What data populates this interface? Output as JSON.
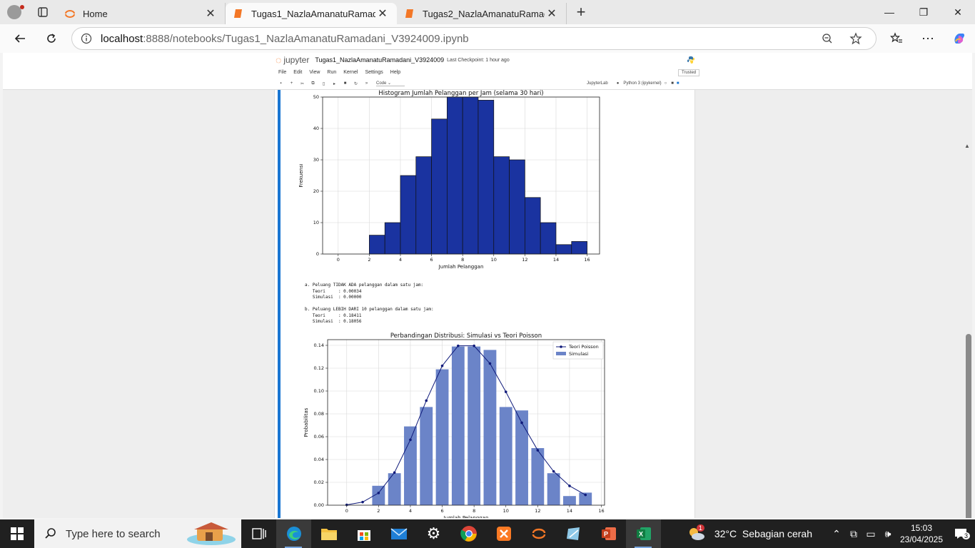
{
  "browser": {
    "tabs": [
      {
        "title": "Home",
        "state": "inactive"
      },
      {
        "title": "Tugas1_NazlaAmanatuRamadani_",
        "state": "active"
      },
      {
        "title": "Tugas2_NazlaAmanatuRamadani_",
        "state": "inactive"
      }
    ],
    "url_host": "localhost",
    "url_path": ":8888/notebooks/Tugas1_NazlaAmanatuRamadani_V3924009.ipynb",
    "icons": [
      "back-icon",
      "reload-icon",
      "info-icon",
      "zoom-icon",
      "favorite-star-icon",
      "favorites-icon",
      "more-icon",
      "copilot-icon"
    ]
  },
  "jupyter": {
    "logo_text": "jupyter",
    "notebook_name": "Tugas1_NazlaAmanatuRamadani_V3924009",
    "checkpoint": "Last Checkpoint: 1 hour ago",
    "menu": [
      "File",
      "Edit",
      "View",
      "Run",
      "Kernel",
      "Settings",
      "Help"
    ],
    "trusted": "Trusted",
    "cell_type": "Code",
    "jupyterlab_link": "JupyterLab",
    "kernel": "Python 3 (ipykernel)"
  },
  "output": {
    "text_a": "a. Peluang TIDAK ADA pelanggan dalam satu jam:\n   Teori     : 0.00034\n   Simulasi  : 0.00000",
    "text_b": "b. Peluang LEBIH DARI 10 pelanggan dalam satu jam:\n   Teori     : 0.18411\n   Simulasi  : 0.18056"
  },
  "chart_data": [
    {
      "type": "bar",
      "title": "Histogram Jumlah Pelanggan per Jam (selama 30 hari)",
      "xlabel": "Jumlah Pelanggan",
      "ylabel": "Frekuensi",
      "categories": [
        2,
        3,
        4,
        5,
        6,
        7,
        8,
        9,
        10,
        11,
        12,
        13,
        14,
        15
      ],
      "values": [
        6,
        10,
        25,
        31,
        43,
        50,
        50,
        49,
        31,
        30,
        18,
        10,
        3,
        4
      ],
      "xlim": [
        -1,
        16.8
      ],
      "ylim": [
        0,
        50
      ],
      "xticks": [
        0,
        2,
        4,
        6,
        8,
        10,
        12,
        14,
        16
      ],
      "yticks": [
        0,
        10,
        20,
        30,
        40,
        50
      ],
      "grid": true,
      "bar_color": "#1a33a0"
    },
    {
      "type": "bar+line",
      "title": "Perbandingan Distribusi: Simulasi vs Teori Poisson",
      "xlabel": "Jumlah Pelanggan",
      "ylabel": "Probabilitas",
      "legend": [
        "Teori Poisson",
        "Simulasi"
      ],
      "legend_position": "top-right",
      "series": [
        {
          "name": "Simulasi",
          "type": "bar",
          "x": [
            0,
            1,
            2,
            3,
            4,
            5,
            6,
            7,
            8,
            9,
            10,
            11,
            12,
            13,
            14,
            15
          ],
          "values": [
            0,
            0,
            0.017,
            0.028,
            0.069,
            0.086,
            0.119,
            0.139,
            0.139,
            0.136,
            0.086,
            0.083,
            0.05,
            0.028,
            0.008,
            0.011
          ]
        },
        {
          "name": "Teori Poisson",
          "type": "line",
          "x": [
            0,
            1,
            2,
            3,
            4,
            5,
            6,
            7,
            8,
            9,
            10,
            11,
            12,
            13,
            14,
            15
          ],
          "values": [
            0.0003,
            0.0027,
            0.0107,
            0.0286,
            0.0573,
            0.0916,
            0.1221,
            0.1396,
            0.1396,
            0.1241,
            0.0993,
            0.0722,
            0.0481,
            0.0296,
            0.0169,
            0.009
          ]
        }
      ],
      "xlim": [
        -1.2,
        16.2
      ],
      "ylim": [
        0,
        0.145
      ],
      "xticks": [
        0,
        2,
        4,
        6,
        8,
        10,
        12,
        14,
        16
      ],
      "yticks": [
        "0.00",
        "0.02",
        "0.04",
        "0.06",
        "0.08",
        "0.10",
        "0.12",
        "0.14"
      ],
      "grid": true,
      "bar_color": "#6b84c8",
      "line_color": "#0f1a7a"
    }
  ],
  "taskbar": {
    "search_placeholder": "Type here to search",
    "apps": [
      "task-view-icon",
      "edge-icon",
      "file-explorer-icon",
      "store-icon",
      "mail-icon",
      "settings-icon",
      "chrome-icon",
      "xampp-icon",
      "jupyter-icon",
      "snipping-icon",
      "powerpoint-icon",
      "excel-icon"
    ],
    "weather": "32°C  Sebagian cerah",
    "weather_badge": "1",
    "time": "15:03",
    "date": "23/04/2025",
    "notification_count": "3"
  }
}
